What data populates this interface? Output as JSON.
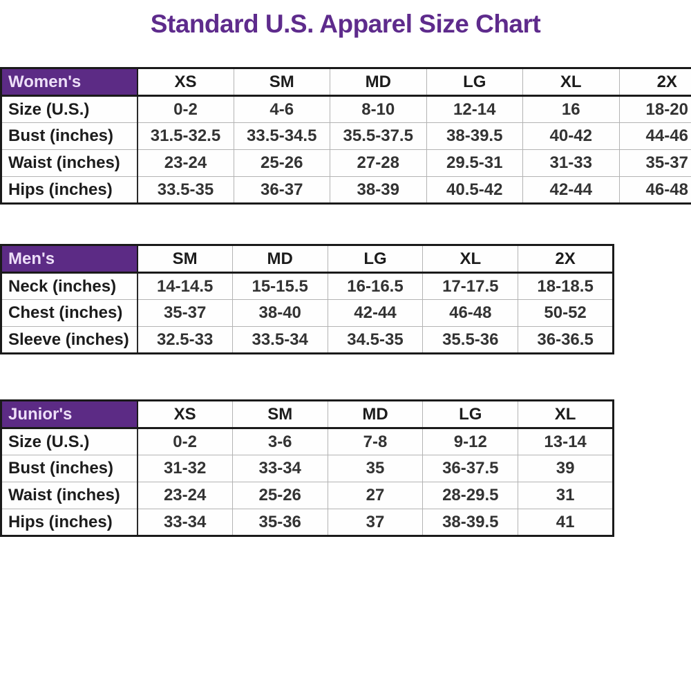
{
  "page": {
    "title": "Standard U.S. Apparel Size Chart"
  },
  "colors": {
    "title_purple": "#5E2B8C",
    "header_purple": "#5C2B85",
    "header_text": "#EDDFF8",
    "cell_text": "#333333",
    "border_dark": "#1a1a1a",
    "grid_light": "#b3b3b3"
  },
  "tables": [
    {
      "name": "Women's",
      "columns": [
        "XS",
        "SM",
        "MD",
        "LG",
        "XL",
        "2X"
      ],
      "rows": [
        {
          "label": "Size (U.S.)",
          "values": [
            "0-2",
            "4-6",
            "8-10",
            "12-14",
            "16",
            "18-20"
          ]
        },
        {
          "label": "Bust (inches)",
          "values": [
            "31.5-32.5",
            "33.5-34.5",
            "35.5-37.5",
            "38-39.5",
            "40-42",
            "44-46"
          ]
        },
        {
          "label": "Waist (inches)",
          "values": [
            "23-24",
            "25-26",
            "27-28",
            "29.5-31",
            "31-33",
            "35-37"
          ]
        },
        {
          "label": "Hips (inches)",
          "values": [
            "33.5-35",
            "36-37",
            "38-39",
            "40.5-42",
            "42-44",
            "46-48"
          ]
        }
      ]
    },
    {
      "name": "Men's",
      "columns": [
        "SM",
        "MD",
        "LG",
        "XL",
        "2X"
      ],
      "rows": [
        {
          "label": "Neck (inches)",
          "values": [
            "14-14.5",
            "15-15.5",
            "16-16.5",
            "17-17.5",
            "18-18.5"
          ]
        },
        {
          "label": "Chest (inches)",
          "values": [
            "35-37",
            "38-40",
            "42-44",
            "46-48",
            "50-52"
          ]
        },
        {
          "label": "Sleeve (inches)",
          "values": [
            "32.5-33",
            "33.5-34",
            "34.5-35",
            "35.5-36",
            "36-36.5"
          ]
        }
      ]
    },
    {
      "name": "Junior's",
      "columns": [
        "XS",
        "SM",
        "MD",
        "LG",
        "XL"
      ],
      "rows": [
        {
          "label": "Size (U.S.)",
          "values": [
            "0-2",
            "3-6",
            "7-8",
            "9-12",
            "13-14"
          ]
        },
        {
          "label": "Bust (inches)",
          "values": [
            "31-32",
            "33-34",
            "35",
            "36-37.5",
            "39"
          ]
        },
        {
          "label": "Waist (inches)",
          "values": [
            "23-24",
            "25-26",
            "27",
            "28-29.5",
            "31"
          ]
        },
        {
          "label": "Hips (inches)",
          "values": [
            "33-34",
            "35-36",
            "37",
            "38-39.5",
            "41"
          ]
        }
      ]
    }
  ]
}
